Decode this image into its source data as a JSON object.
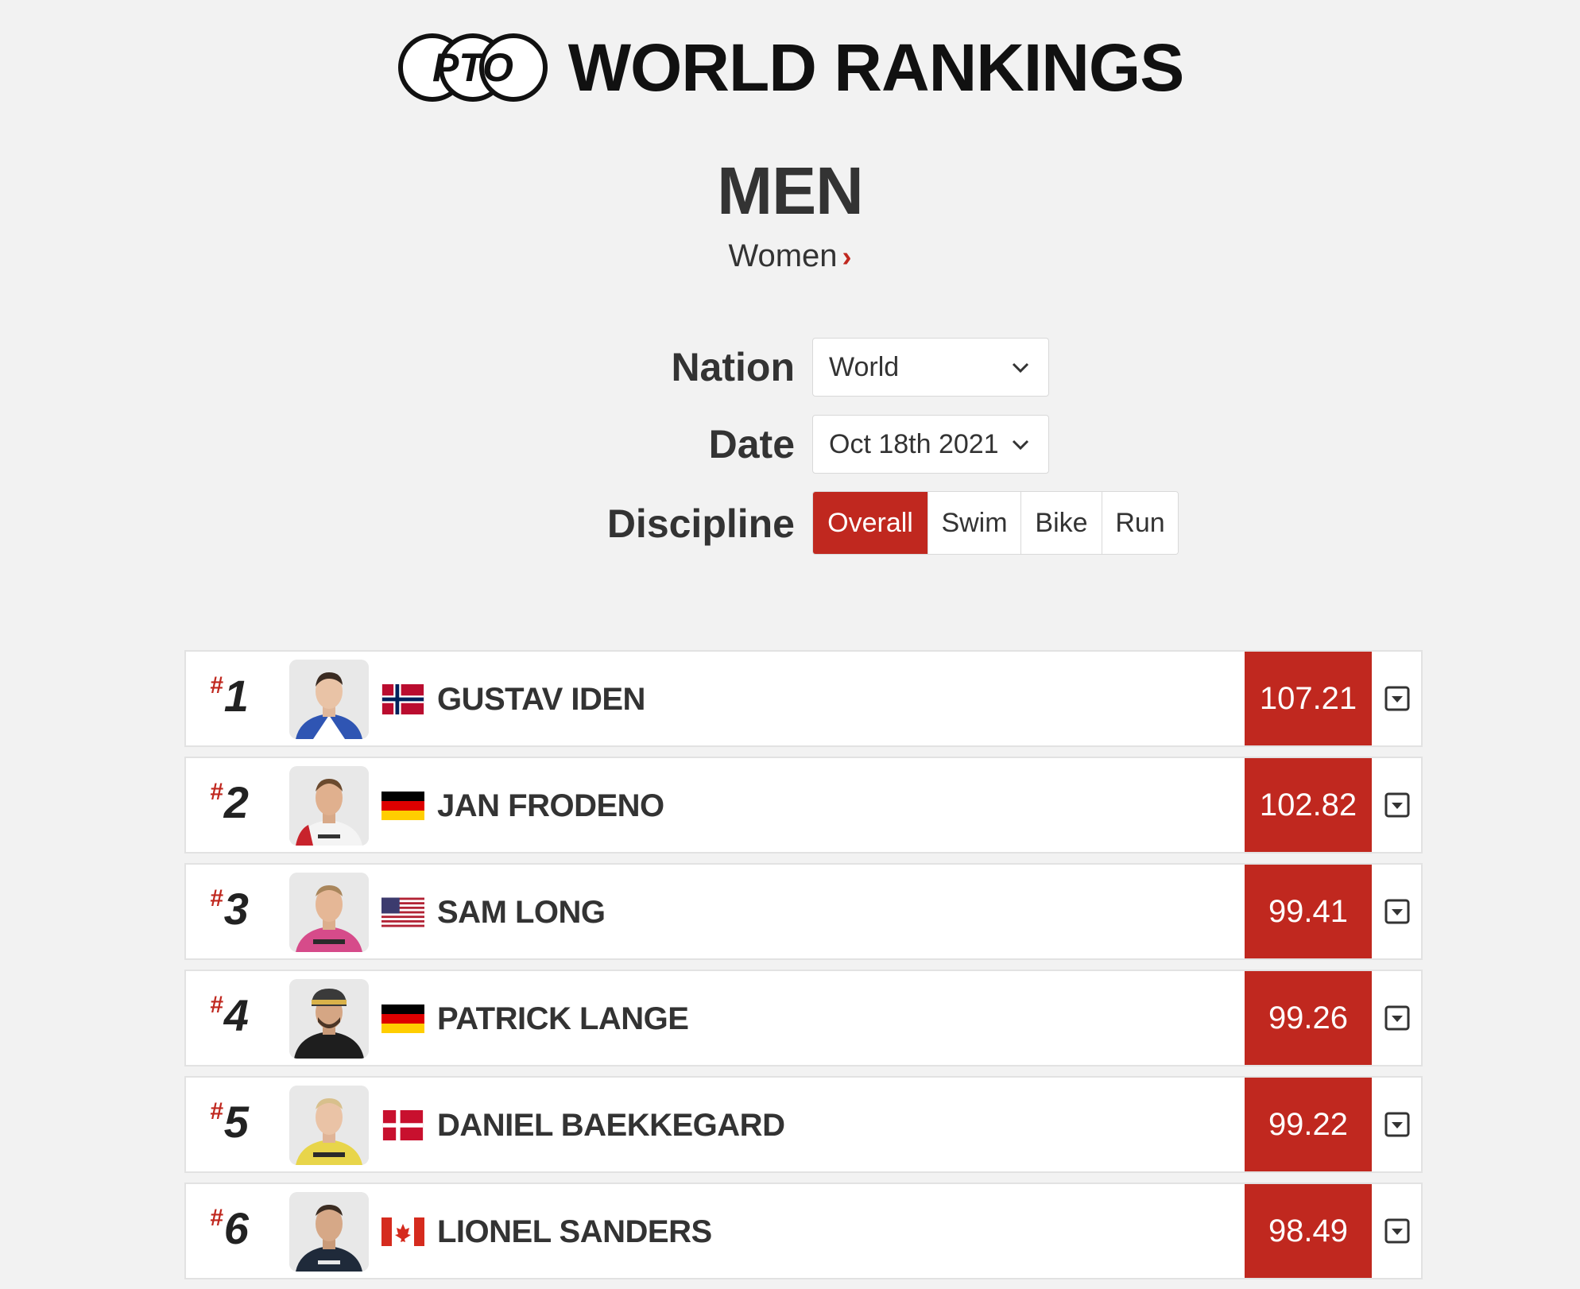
{
  "header": {
    "logo_text": "PTO",
    "title": "WORLD RANKINGS"
  },
  "gender": {
    "current": "MEN",
    "switch_label": "Women",
    "switch_chevron": "›"
  },
  "filters": {
    "nation": {
      "label": "Nation",
      "value": "World"
    },
    "date": {
      "label": "Date",
      "value": "Oct 18th 2021"
    },
    "discipline": {
      "label": "Discipline",
      "options": [
        "Overall",
        "Swim",
        "Bike",
        "Run"
      ],
      "selected": "Overall"
    }
  },
  "colors": {
    "accent": "#c0281f",
    "background": "#f2f2f2"
  },
  "rankings": [
    {
      "hash": "#",
      "rank": "1",
      "name": "GUSTAV IDEN",
      "nation": "Norway",
      "flag": "norway-flag",
      "score": "107.21"
    },
    {
      "hash": "#",
      "rank": "2",
      "name": "JAN FRODENO",
      "nation": "Germany",
      "flag": "germany-flag",
      "score": "102.82"
    },
    {
      "hash": "#",
      "rank": "3",
      "name": "SAM LONG",
      "nation": "United States",
      "flag": "usa-flag",
      "score": "99.41"
    },
    {
      "hash": "#",
      "rank": "4",
      "name": "PATRICK LANGE",
      "nation": "Germany",
      "flag": "germany-flag",
      "score": "99.26"
    },
    {
      "hash": "#",
      "rank": "5",
      "name": "DANIEL BAEKKEGARD",
      "nation": "Denmark",
      "flag": "denmark-flag",
      "score": "99.22"
    },
    {
      "hash": "#",
      "rank": "6",
      "name": "LIONEL SANDERS",
      "nation": "Canada",
      "flag": "canada-flag",
      "score": "98.49"
    }
  ]
}
